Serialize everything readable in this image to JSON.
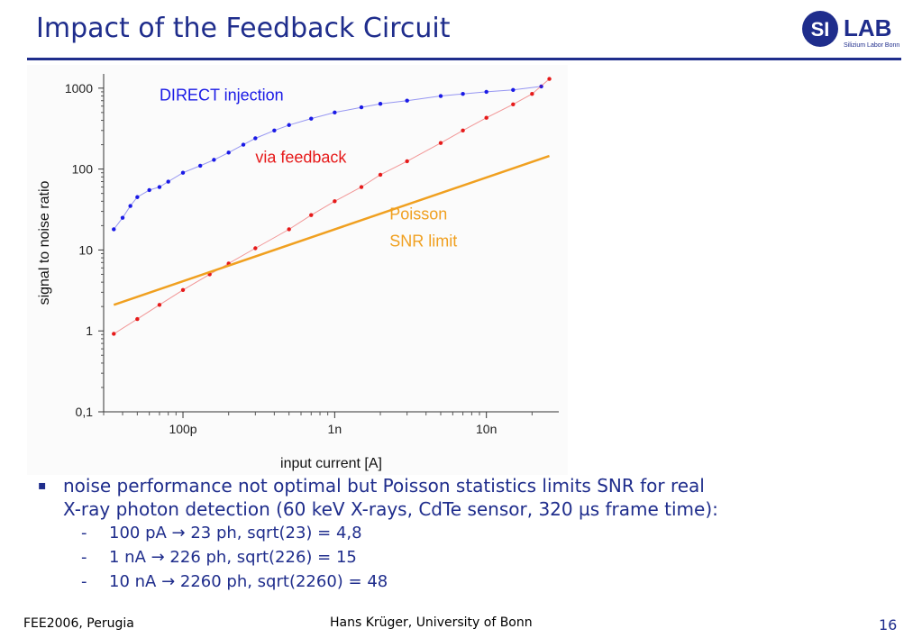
{
  "slide": {
    "title": "Impact of the Feedback Circuit"
  },
  "logo": {
    "badge": "SI",
    "name": "LAB",
    "subtitle": "Silizium Labor Bonn",
    "color": "#1f2d8c"
  },
  "chart_data": {
    "type": "scatter",
    "xlabel": "input current [A]",
    "ylabel": "signal to noise ratio",
    "x_scale": "log",
    "y_scale": "log",
    "xlim": [
      3e-11,
      3e-08
    ],
    "ylim": [
      0.1,
      1500
    ],
    "x_ticks": [
      {
        "value": 1e-10,
        "label": "100p"
      },
      {
        "value": 1e-09,
        "label": "1n"
      },
      {
        "value": 1e-08,
        "label": "10n"
      }
    ],
    "y_ticks": [
      {
        "value": 0.1,
        "label": "0,1"
      },
      {
        "value": 1,
        "label": "1"
      },
      {
        "value": 10,
        "label": "10"
      },
      {
        "value": 100,
        "label": "100"
      },
      {
        "value": 1000,
        "label": "1000"
      }
    ],
    "series": [
      {
        "name": "DIRECT injection",
        "color": "#1a1ae6",
        "points": [
          [
            3.5e-11,
            18
          ],
          [
            4e-11,
            25
          ],
          [
            4.5e-11,
            35
          ],
          [
            5e-11,
            45
          ],
          [
            6e-11,
            55
          ],
          [
            7e-11,
            60
          ],
          [
            8e-11,
            70
          ],
          [
            1e-10,
            90
          ],
          [
            1.3e-10,
            110
          ],
          [
            1.6e-10,
            130
          ],
          [
            2e-10,
            160
          ],
          [
            2.5e-10,
            200
          ],
          [
            3e-10,
            240
          ],
          [
            4e-10,
            300
          ],
          [
            5e-10,
            350
          ],
          [
            7e-10,
            420
          ],
          [
            1e-09,
            500
          ],
          [
            1.5e-09,
            580
          ],
          [
            2e-09,
            640
          ],
          [
            3e-09,
            700
          ],
          [
            5e-09,
            800
          ],
          [
            7e-09,
            850
          ],
          [
            1e-08,
            900
          ],
          [
            1.5e-08,
            950
          ],
          [
            2.3e-08,
            1050
          ]
        ]
      },
      {
        "name": "via feedback",
        "color": "#e61a1a",
        "points": [
          [
            3.5e-11,
            0.92
          ],
          [
            5e-11,
            1.4
          ],
          [
            7e-11,
            2.1
          ],
          [
            1e-10,
            3.2
          ],
          [
            1.5e-10,
            5.0
          ],
          [
            2e-10,
            6.8
          ],
          [
            3e-10,
            10.5
          ],
          [
            5e-10,
            18
          ],
          [
            7e-10,
            27
          ],
          [
            1e-09,
            40
          ],
          [
            1.5e-09,
            60
          ],
          [
            2e-09,
            85
          ],
          [
            3e-09,
            125
          ],
          [
            5e-09,
            210
          ],
          [
            7e-09,
            300
          ],
          [
            1e-08,
            430
          ],
          [
            1.5e-08,
            630
          ],
          [
            2e-08,
            850
          ],
          [
            2.6e-08,
            1300
          ]
        ]
      },
      {
        "name": "Poisson SNR limit",
        "color": "#f0a020",
        "points": [
          [
            3.5e-11,
            2.1
          ],
          [
            2.6e-08,
            145
          ]
        ]
      }
    ],
    "annotations": [
      {
        "text": "DIRECT injection",
        "color": "#1a1ae6"
      },
      {
        "text": "via feedback",
        "color": "#e61a1a"
      },
      {
        "text": "Poisson",
        "color": "#f0a020"
      },
      {
        "text": "SNR limit",
        "color": "#f0a020"
      }
    ]
  },
  "bullets": {
    "marker": "▪",
    "main_line1": "noise performance not optimal but Poisson statistics limits SNR for real",
    "main_line2": "X-ray photon detection (60 keV X-rays, CdTe sensor, 320 µs frame time):",
    "subs": [
      {
        "dash": "-",
        "text": "100 pA → 23 ph, sqrt(23) = 4,8"
      },
      {
        "dash": "-",
        "text": "1 nA → 226 ph, sqrt(226) = 15"
      },
      {
        "dash": "-",
        "text": "10 nA → 2260 ph, sqrt(2260) = 48"
      }
    ]
  },
  "footer": {
    "left": "FEE2006, Perugia",
    "center": "Hans Krüger, University of Bonn",
    "page": "16"
  }
}
